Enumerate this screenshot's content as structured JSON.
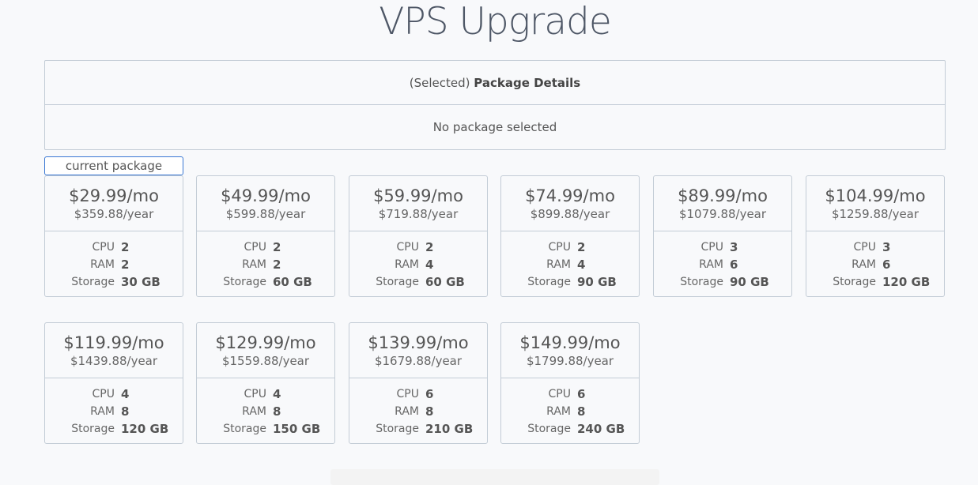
{
  "page": {
    "title": "VPS Upgrade"
  },
  "details": {
    "header_prefix": "(Selected)",
    "header_bold": "Package Details",
    "body": "No package selected"
  },
  "current_label": "current package",
  "spec_labels": {
    "cpu": "CPU",
    "ram": "RAM",
    "storage": "Storage"
  },
  "colors": {
    "accent": "#3a78d4",
    "border": "#c3ccd6",
    "background": "#f8f9fb"
  },
  "packages": [
    {
      "monthly": "$29.99/mo",
      "yearly": "$359.88/year",
      "cpu": "2",
      "ram": "2",
      "storage": "30 GB",
      "current": true
    },
    {
      "monthly": "$49.99/mo",
      "yearly": "$599.88/year",
      "cpu": "2",
      "ram": "2",
      "storage": "60 GB"
    },
    {
      "monthly": "$59.99/mo",
      "yearly": "$719.88/year",
      "cpu": "2",
      "ram": "4",
      "storage": "60 GB"
    },
    {
      "monthly": "$74.99/mo",
      "yearly": "$899.88/year",
      "cpu": "2",
      "ram": "4",
      "storage": "90 GB"
    },
    {
      "monthly": "$89.99/mo",
      "yearly": "$1079.88/year",
      "cpu": "3",
      "ram": "6",
      "storage": "90 GB"
    },
    {
      "monthly": "$104.99/mo",
      "yearly": "$1259.88/year",
      "cpu": "3",
      "ram": "6",
      "storage": "120 GB"
    },
    {
      "monthly": "$119.99/mo",
      "yearly": "$1439.88/year",
      "cpu": "4",
      "ram": "8",
      "storage": "120 GB"
    },
    {
      "monthly": "$129.99/mo",
      "yearly": "$1559.88/year",
      "cpu": "4",
      "ram": "8",
      "storage": "150 GB"
    },
    {
      "monthly": "$139.99/mo",
      "yearly": "$1679.88/year",
      "cpu": "6",
      "ram": "8",
      "storage": "210 GB"
    },
    {
      "monthly": "$149.99/mo",
      "yearly": "$1799.88/year",
      "cpu": "6",
      "ram": "8",
      "storage": "240 GB"
    }
  ]
}
